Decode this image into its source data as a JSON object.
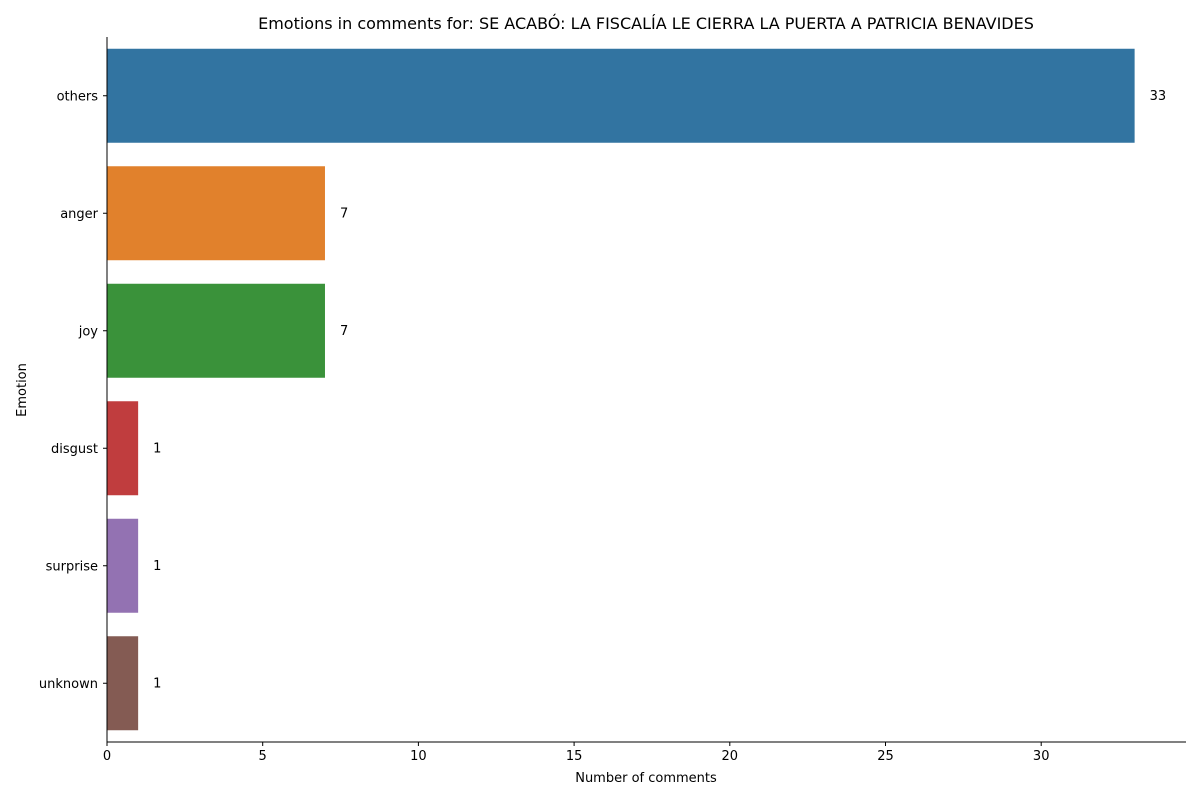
{
  "chart_data": {
    "type": "bar",
    "orientation": "horizontal",
    "title": "Emotions in comments for: SE ACABÓ: LA FISCALÍA LE CIERRA LA PUERTA A PATRICIA BENAVIDES",
    "xlabel": "Number of comments",
    "ylabel": "Emotion",
    "categories": [
      "others",
      "anger",
      "joy",
      "disgust",
      "surprise",
      "unknown"
    ],
    "values": [
      33,
      7,
      7,
      1,
      1,
      1
    ],
    "data_labels": [
      "33",
      "7",
      "7",
      "1",
      "1",
      "1"
    ],
    "colors": [
      "#3274a1",
      "#e1812c",
      "#3a923a",
      "#c03d3e",
      "#9372b2",
      "#845b53"
    ],
    "xlim": [
      0,
      34.65
    ],
    "x_ticks": [
      0,
      5,
      10,
      15,
      20,
      25,
      30
    ],
    "x_tick_labels": [
      "0",
      "5",
      "10",
      "15",
      "20",
      "25",
      "30"
    ],
    "grid": false,
    "legend": "none"
  }
}
